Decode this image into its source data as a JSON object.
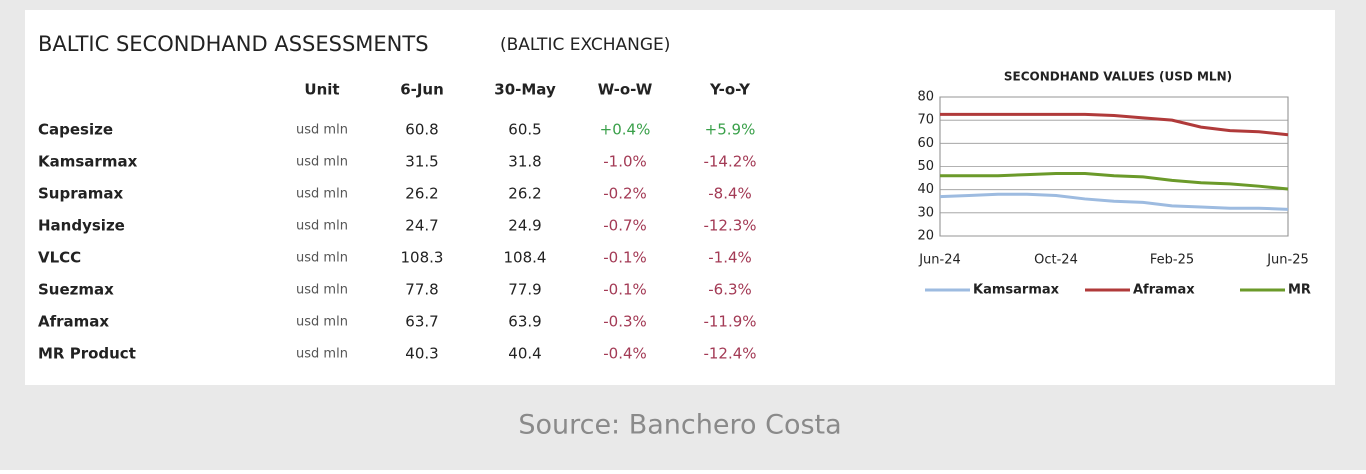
{
  "header": {
    "title": "BALTIC SECONDHAND ASSESSMENTS",
    "subtitle": "(BALTIC EXCHANGE)"
  },
  "table": {
    "columns": [
      "Unit",
      "6-Jun",
      "30-May",
      "W-o-W",
      "Y-o-Y"
    ],
    "rows": [
      [
        "Capesize",
        "usd mln",
        "60.8",
        "60.5",
        "+0.4%",
        "+5.9%"
      ],
      [
        "Kamsarmax",
        "usd mln",
        "31.5",
        "31.8",
        "-1.0%",
        "-14.2%"
      ],
      [
        "Supramax",
        "usd mln",
        "26.2",
        "26.2",
        "-0.2%",
        "-8.4%"
      ],
      [
        "Handysize",
        "usd mln",
        "24.7",
        "24.9",
        "-0.7%",
        "-12.3%"
      ],
      [
        "VLCC",
        "usd mln",
        "108.3",
        "108.4",
        "-0.1%",
        "-1.4%"
      ],
      [
        "Suezmax",
        "usd mln",
        "77.8",
        "77.9",
        "-0.1%",
        "-6.3%"
      ],
      [
        "Aframax",
        "usd mln",
        "63.7",
        "63.9",
        "-0.3%",
        "-11.9%"
      ],
      [
        "MR Product",
        "usd mln",
        "40.3",
        "40.4",
        "-0.4%",
        "-12.4%"
      ]
    ]
  },
  "chart_data": {
    "type": "line",
    "title": "SECONDHAND VALUES (USD MLN)",
    "categories": [
      "Jun-24",
      null,
      null,
      null,
      "Oct-24",
      null,
      null,
      null,
      "Feb-25",
      null,
      null,
      null,
      "Jun-25"
    ],
    "series": [
      {
        "name": "Kamsarmax",
        "color": "#9dbbe0",
        "values": [
          37,
          37.5,
          38,
          38,
          37.5,
          36,
          35,
          34.5,
          33,
          32.5,
          32,
          32,
          31.5
        ]
      },
      {
        "name": "Aframax",
        "color": "#b03a3a",
        "values": [
          72.5,
          72.5,
          72.5,
          72.5,
          72.5,
          72.5,
          72,
          71,
          70,
          67,
          65.5,
          65,
          63.7
        ]
      },
      {
        "name": "MR",
        "color": "#6b9a2a",
        "values": [
          46,
          46,
          46,
          46.5,
          47,
          47,
          46,
          45.5,
          44,
          43,
          42.5,
          41.5,
          40.3
        ]
      }
    ],
    "ylim": [
      20,
      80
    ],
    "yticks": [
      20,
      30,
      40,
      50,
      60,
      70,
      80
    ],
    "grid": true,
    "legend": "bottom"
  },
  "source": "Source: Banchero Costa"
}
